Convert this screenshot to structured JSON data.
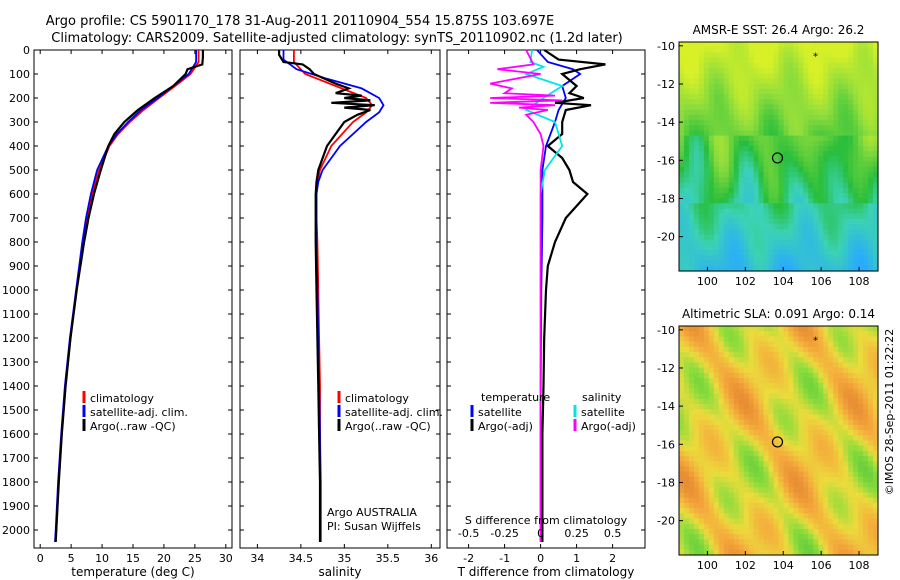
{
  "title_line1": "Argo profile: CS 5901170_178 31-Aug-2011 20110904_554 15.875S 103.697E",
  "title_line2": "Climatology: CARS2009. Satellite-adjusted climatology: synTS_20110902.nc (1.2d later)",
  "credit": "©IMOS 28-Sep-2011 01:22:22",
  "colors": {
    "climatology": "#ff0000",
    "satellite": "#0000ff",
    "argo": "#000000",
    "sal_satellite": "#00e5e5",
    "sal_argo": "#ff00ff"
  },
  "chart_data": [
    {
      "type": "line",
      "panel": "temperature",
      "xlabel": "temperature (deg C)",
      "ylabel": "",
      "xlim": [
        -1,
        31
      ],
      "ylim": [
        2075,
        0
      ],
      "xticks": [
        0,
        5,
        10,
        15,
        20,
        25,
        30
      ],
      "yticks": [
        0,
        100,
        200,
        300,
        400,
        500,
        600,
        700,
        800,
        900,
        1000,
        1100,
        1200,
        1300,
        1400,
        1500,
        1600,
        1700,
        1800,
        1900,
        2000
      ],
      "legend": [
        "climatology",
        "satellite-adj. clim.",
        "Argo(..raw -QC)"
      ],
      "legend_position": "lower-center",
      "series": [
        {
          "name": "climatology",
          "color": "#ff0000",
          "depth": [
            0,
            50,
            100,
            150,
            200,
            250,
            300,
            350,
            400,
            500,
            600,
            700,
            800,
            900,
            1000,
            1200,
            1400,
            1600,
            1800,
            2000,
            2050
          ],
          "values": [
            25.6,
            25.6,
            24.3,
            21.8,
            19.2,
            16.7,
            14.5,
            12.6,
            11.2,
            9.5,
            8.4,
            7.6,
            7.0,
            6.4,
            5.9,
            4.9,
            4.1,
            3.5,
            3.0,
            2.6,
            2.5
          ]
        },
        {
          "name": "satellite-adj. clim.",
          "color": "#0000ff",
          "depth": [
            0,
            50,
            100,
            150,
            200,
            250,
            300,
            350,
            400,
            500,
            600,
            700,
            800,
            900,
            1000,
            1200,
            1400,
            1600,
            1800,
            2000,
            2050
          ],
          "values": [
            25.2,
            25.2,
            24.0,
            21.5,
            19.0,
            16.3,
            14.2,
            12.4,
            11.0,
            9.2,
            8.2,
            7.4,
            6.8,
            6.3,
            5.8,
            4.8,
            4.0,
            3.4,
            2.9,
            2.5,
            2.4
          ]
        },
        {
          "name": "Argo(..raw -QC)",
          "color": "#000000",
          "depth": [
            0,
            30,
            60,
            80,
            100,
            150,
            200,
            250,
            300,
            350,
            400,
            500,
            600,
            700,
            800,
            900,
            1000,
            1200,
            1400,
            1600,
            1800,
            2000,
            2050
          ],
          "values": [
            26.3,
            26.3,
            26.2,
            23.8,
            23.5,
            21.5,
            18.5,
            15.8,
            13.6,
            12.0,
            11.0,
            9.8,
            8.7,
            7.8,
            7.1,
            6.5,
            5.9,
            4.9,
            4.1,
            3.5,
            3.0,
            2.6,
            2.5
          ]
        }
      ]
    },
    {
      "type": "line",
      "panel": "salinity",
      "xlabel": "salinity",
      "ylabel": "",
      "xlim": [
        33.8,
        36.1
      ],
      "ylim": [
        2075,
        0
      ],
      "xticks": [
        34,
        34.5,
        35,
        35.5,
        36
      ],
      "legend": [
        "climatology",
        "satellite-adj. clim.",
        "Argo(..raw -QC)"
      ],
      "legend_position": "lower-center",
      "annotation": [
        "Argo AUSTRALIA",
        "PI: Susan Wijffels"
      ],
      "series": [
        {
          "name": "climatology",
          "color": "#ff0000",
          "depth": [
            0,
            50,
            100,
            150,
            200,
            230,
            260,
            300,
            400,
            500,
            550,
            600,
            700,
            800,
            1000,
            1200,
            1400,
            1600,
            1800,
            2000,
            2050
          ],
          "values": [
            34.42,
            34.42,
            34.55,
            34.9,
            35.25,
            35.32,
            35.25,
            35.1,
            34.85,
            34.72,
            34.69,
            34.68,
            34.68,
            34.69,
            34.7,
            34.71,
            34.72,
            34.72,
            34.73,
            34.73,
            34.73
          ]
        },
        {
          "name": "satellite-adj. clim.",
          "color": "#0000ff",
          "depth": [
            0,
            40,
            80,
            120,
            160,
            200,
            230,
            260,
            300,
            400,
            500,
            550,
            600,
            700,
            800,
            1000,
            1200,
            1400,
            1600,
            1800,
            2000,
            2050
          ],
          "values": [
            34.3,
            34.3,
            34.45,
            34.8,
            35.2,
            35.4,
            35.45,
            35.4,
            35.25,
            34.95,
            34.75,
            34.7,
            34.68,
            34.68,
            34.68,
            34.69,
            34.7,
            34.71,
            34.72,
            34.72,
            34.72,
            34.72
          ]
        },
        {
          "name": "Argo(..raw -QC)",
          "color": "#000000",
          "depth": [
            0,
            20,
            50,
            60,
            80,
            100,
            140,
            160,
            180,
            190,
            200,
            210,
            220,
            230,
            240,
            250,
            270,
            300,
            400,
            500,
            550,
            600,
            700,
            800,
            1000,
            1200,
            1400,
            1600,
            1800,
            2000,
            2050
          ],
          "values": [
            34.25,
            34.25,
            34.3,
            34.52,
            34.6,
            34.65,
            34.9,
            35.05,
            34.9,
            35.2,
            35.0,
            35.3,
            34.85,
            35.35,
            35.0,
            35.3,
            35.15,
            35.0,
            34.8,
            34.7,
            34.68,
            34.67,
            34.67,
            34.67,
            34.68,
            34.69,
            34.7,
            34.71,
            34.72,
            34.72,
            34.72
          ]
        }
      ]
    },
    {
      "type": "line",
      "panel": "difference",
      "xlabel": "T difference from climatology",
      "xlabel2": "S difference from climatology",
      "ylabel": "",
      "xlim": [
        -2.6,
        2.9
      ],
      "ylim": [
        2075,
        0
      ],
      "xticks": [
        -2,
        -1,
        0,
        1,
        2
      ],
      "xticks_s": [
        "-0.5",
        "-0.25",
        "0",
        "0.25",
        "0.5"
      ],
      "xticks_s_values": [
        -0.5,
        -0.25,
        0,
        0.25,
        0.5
      ],
      "legend_headers": [
        "temperature",
        "salinity"
      ],
      "legend": [
        "satellite",
        "Argo(-adj)",
        "satellite",
        "Argo(-adj)"
      ],
      "series": [
        {
          "name": "satellite",
          "group": "temperature",
          "color": "#0000ff",
          "depth": [
            0,
            50,
            80,
            100,
            150,
            200,
            250,
            300,
            400,
            500,
            700,
            1000,
            1500,
            2000,
            2050
          ],
          "values": [
            -0.1,
            0.2,
            0.9,
            1.1,
            0.6,
            0.7,
            0.5,
            0.4,
            0.15,
            0.05,
            0.05,
            0.02,
            0.0,
            0.0,
            0.0
          ]
        },
        {
          "name": "Argo(-adj)",
          "group": "temperature",
          "color": "#000000",
          "depth": [
            0,
            40,
            60,
            80,
            100,
            150,
            180,
            200,
            220,
            230,
            250,
            300,
            350,
            400,
            450,
            500,
            550,
            600,
            700,
            800,
            900,
            1000,
            1200,
            1400,
            1600,
            1800,
            2000,
            2050
          ],
          "values": [
            0.1,
            0.5,
            1.8,
            1.1,
            0.6,
            1.0,
            0.8,
            1.2,
            0.4,
            1.4,
            0.7,
            0.6,
            0.6,
            0.2,
            0.6,
            0.8,
            0.9,
            1.3,
            0.7,
            0.4,
            0.2,
            0.15,
            0.1,
            0.08,
            0.05,
            0.05,
            0.05,
            0.05
          ]
        },
        {
          "name": "satellite",
          "group": "salinity",
          "color": "#00e5e5",
          "depth": [
            0,
            50,
            70,
            100,
            150,
            200,
            250,
            300,
            400,
            500,
            600,
            700,
            800,
            1000,
            1400,
            2000,
            2050
          ],
          "values": [
            -0.06,
            -0.07,
            0.02,
            -0.1,
            0.15,
            0.02,
            -0.1,
            0.1,
            0.15,
            0.03,
            0.0,
            0.0,
            0.0,
            0.0,
            0.0,
            0.0,
            0.0
          ]
        },
        {
          "name": "Argo(-adj)",
          "group": "salinity",
          "color": "#ff00ff",
          "depth": [
            0,
            60,
            80,
            100,
            140,
            160,
            180,
            190,
            200,
            210,
            220,
            230,
            240,
            250,
            270,
            300,
            350,
            400,
            500,
            600,
            700,
            1000,
            1500,
            2000,
            2050
          ],
          "values": [
            -0.1,
            -0.05,
            -0.3,
            0.0,
            -0.35,
            -0.2,
            -0.25,
            0.1,
            -0.35,
            0.15,
            -0.35,
            0.1,
            -0.15,
            0.05,
            -0.1,
            -0.05,
            0.0,
            0.02,
            0.0,
            0.0,
            0.0,
            0.0,
            0.0,
            0.0,
            0.0
          ]
        }
      ]
    },
    {
      "type": "heatmap",
      "panel": "sst_map",
      "title": "AMSR-E SST: 26.4  Argo: 26.2",
      "xlim": [
        98.5,
        109
      ],
      "ylim": [
        -21.8,
        -9.8
      ],
      "xticks": [
        100,
        102,
        104,
        106,
        108
      ],
      "yticks": [
        -10,
        -12,
        -14,
        -16,
        -18,
        -20
      ],
      "argo_position": [
        103.697,
        -15.875
      ],
      "marker_star": [
        105.7,
        -10.5
      ]
    },
    {
      "type": "heatmap",
      "panel": "sla_map",
      "title": "Altimetric SLA: 0.091  Argo: 0.14",
      "xlim": [
        98.5,
        109
      ],
      "ylim": [
        -21.8,
        -9.8
      ],
      "xticks": [
        100,
        102,
        104,
        106,
        108
      ],
      "yticks": [
        -10,
        -12,
        -14,
        -16,
        -18,
        -20
      ],
      "argo_position": [
        103.697,
        -15.875
      ],
      "marker_star": [
        105.7,
        -10.5
      ]
    }
  ]
}
